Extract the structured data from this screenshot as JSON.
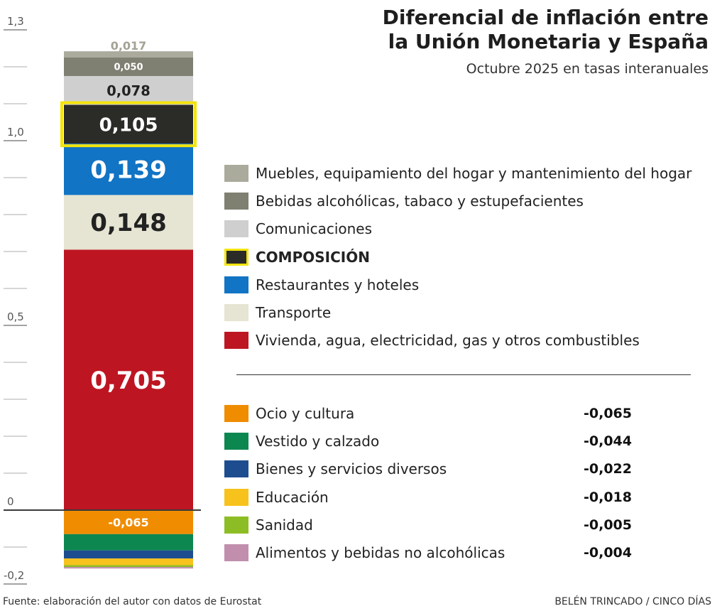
{
  "title_lines": [
    "Diferencial de inflación entre",
    "la Unión Monetaria y España"
  ],
  "subtitle": "Octubre 2025 en tasas interanuales",
  "source": "Fuente: elaboración del autor con datos de Eurostat",
  "credit": "BELÉN TRINCADO / CINCO DÍAS",
  "chart_data": {
    "type": "bar",
    "title": "Diferencial de inflación entre la Unión Monetaria y España",
    "subtitle": "Octubre 2025 en tasas interanuales",
    "ylim": [
      -0.2,
      1.3
    ],
    "yticks": [
      {
        "value": 1.3,
        "label": "1,3"
      },
      {
        "value": 1.0,
        "label": "1,0"
      },
      {
        "value": 0.5,
        "label": "0,5"
      },
      {
        "value": 0,
        "label": "0"
      },
      {
        "value": -0.2,
        "label": "-0,2"
      }
    ],
    "positive": [
      {
        "name": "Vivienda, agua, electricidad, gas y otros combustibles",
        "value": 0.705,
        "label": "0,705",
        "color": "#bd1622",
        "text_color": "#ffffff"
      },
      {
        "name": "Transporte",
        "value": 0.148,
        "label": "0,148",
        "color": "#e6e4d2",
        "text_color": "#222222"
      },
      {
        "name": "Restaurantes y hoteles",
        "value": 0.139,
        "label": "0,139",
        "color": "#1174c4",
        "text_color": "#ffffff"
      },
      {
        "name": "COMPOSICIÓN",
        "value": 0.105,
        "label": "0,105",
        "color": "#2b2b28",
        "text_color": "#ffffff",
        "highlight": true
      },
      {
        "name": "Comunicaciones",
        "value": 0.078,
        "label": "0,078",
        "color": "#cfcfcf",
        "text_color": "#222222"
      },
      {
        "name": "Bebidas alcohólicas, tabaco y estupefacientes",
        "value": 0.05,
        "label": "0,050",
        "color": "#7f7f72",
        "text_color": "#ffffff"
      },
      {
        "name": "Muebles, equipamiento del hogar y mantenimiento del hogar",
        "value": 0.017,
        "label": "0,017",
        "color": "#abab9d",
        "text_color": "#a3a395",
        "label_outside": true
      }
    ],
    "negative": [
      {
        "name": "Ocio y cultura",
        "value": -0.065,
        "label": "-0,065",
        "color": "#f08c00",
        "show_bar_label": true
      },
      {
        "name": "Vestido y calzado",
        "value": -0.044,
        "label": "-0,044",
        "color": "#0d8750"
      },
      {
        "name": "Bienes y servicios diversos",
        "value": -0.022,
        "label": "-0,022",
        "color": "#1e4d8f"
      },
      {
        "name": "Educación",
        "value": -0.018,
        "label": "-0,018",
        "color": "#f8c21c"
      },
      {
        "name": "Sanidad",
        "value": -0.005,
        "label": "-0,005",
        "color": "#8dbd25"
      },
      {
        "name": "Alimentos y bebidas no alcohólicas",
        "value": -0.004,
        "label": "-0,004",
        "color": "#c18fad"
      }
    ]
  }
}
